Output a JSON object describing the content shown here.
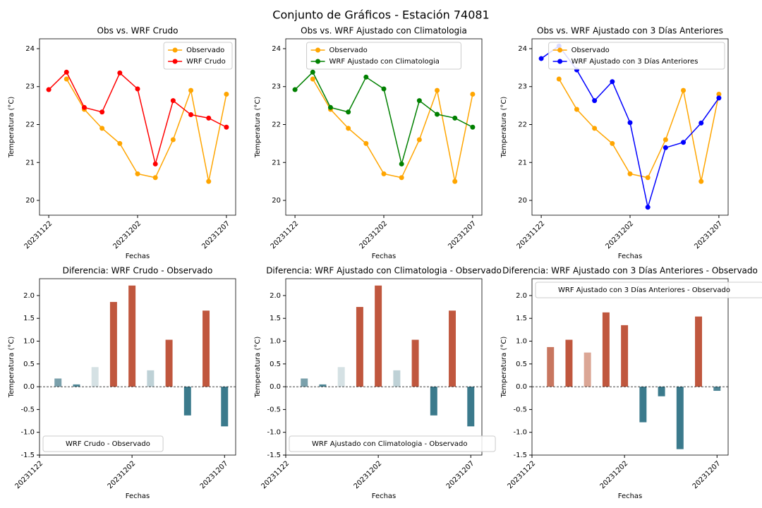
{
  "title": "Conjunto de Gráficos - Estación 74081",
  "chart_data": [
    {
      "type": "line",
      "title": "Obs vs. WRF Crudo",
      "xlabel": "Fechas",
      "ylabel": "Temperatura (°C)",
      "categories": [
        "20231122",
        null,
        null,
        null,
        null,
        "20231202",
        null,
        null,
        null,
        null,
        "20231207"
      ],
      "xlim": [
        -0.52,
        10.52
      ],
      "ylim": [
        19.61,
        24.26
      ],
      "yticks": [
        20,
        21,
        22,
        23,
        24
      ],
      "legend": "upper right",
      "series": [
        {
          "name": "Observado",
          "color": "#ffa500",
          "values": [
            null,
            23.2,
            22.4,
            21.9,
            21.5,
            20.7,
            20.6,
            21.6,
            22.9,
            20.5,
            22.8
          ]
        },
        {
          "name": "WRF Crudo",
          "color": "#ff0000",
          "values": [
            22.92,
            23.38,
            22.45,
            22.33,
            23.36,
            22.94,
            20.96,
            22.63,
            22.26,
            22.17,
            21.93
          ]
        }
      ]
    },
    {
      "type": "line",
      "title": "Obs vs. WRF Ajustado con Climatologia",
      "xlabel": "Fechas",
      "ylabel": "Temperatura (°C)",
      "categories": [
        "20231122",
        null,
        null,
        null,
        null,
        "20231202",
        null,
        null,
        null,
        null,
        "20231207"
      ],
      "xlim": [
        -0.52,
        10.52
      ],
      "ylim": [
        19.61,
        24.26
      ],
      "yticks": [
        20,
        21,
        22,
        23,
        24
      ],
      "legend": "upper center",
      "series": [
        {
          "name": "Observado",
          "color": "#ffa500",
          "values": [
            null,
            23.2,
            22.4,
            21.9,
            21.5,
            20.7,
            20.6,
            21.6,
            22.9,
            20.5,
            22.8
          ]
        },
        {
          "name": "WRF Ajustado con Climatologia",
          "color": "#008000",
          "values": [
            22.92,
            23.38,
            22.45,
            22.33,
            23.25,
            22.94,
            20.96,
            22.63,
            22.27,
            22.17,
            21.93
          ]
        }
      ]
    },
    {
      "type": "line",
      "title": "Obs vs. WRF Ajustado con 3 Días Anteriores",
      "xlabel": "Fechas",
      "ylabel": "Temperatura (°C)",
      "categories": [
        "20231122",
        null,
        null,
        null,
        null,
        "20231202",
        null,
        null,
        null,
        null,
        "20231207"
      ],
      "xlim": [
        -0.52,
        10.52
      ],
      "ylim": [
        19.61,
        24.26
      ],
      "yticks": [
        20,
        21,
        22,
        23,
        24
      ],
      "legend": "upper right",
      "series": [
        {
          "name": "Observado",
          "color": "#ffa500",
          "values": [
            null,
            23.2,
            22.4,
            21.9,
            21.5,
            20.7,
            20.6,
            21.6,
            22.9,
            20.5,
            22.8
          ]
        },
        {
          "name": "WRF Ajustado con 3 Días Anteriores",
          "color": "#0000ff",
          "values": [
            23.74,
            24.07,
            23.44,
            22.63,
            23.13,
            22.05,
            19.82,
            21.39,
            21.53,
            22.04,
            22.7
          ]
        }
      ]
    },
    {
      "type": "bar",
      "title": "Diferencia: WRF Crudo - Observado",
      "xlabel": "Fechas",
      "ylabel": "Temperatura (°C)",
      "categories": [
        "20231122",
        null,
        null,
        null,
        null,
        "20231202",
        null,
        null,
        null,
        null,
        "20231207"
      ],
      "xlim": [
        0,
        10.6
      ],
      "ylim": [
        -1.5,
        2.37
      ],
      "yticks": [
        -1.5,
        {
          "value": -1,
          "label": "-1.0"
        },
        -0.5,
        {
          "value": 0,
          "label": "0.0"
        },
        0.5,
        {
          "value": 1,
          "label": "1.0"
        },
        1.5,
        {
          "value": 2,
          "label": "2.0"
        }
      ],
      "hline": 0,
      "legend": "lower left",
      "series": [
        {
          "name": "WRF Crudo - Observado",
          "colors": [
            null,
            "#7aa0ab",
            "#4f8796",
            "#d5e1e4",
            "#c0573e",
            "#c0573e",
            "#bed1d6",
            "#c0573e",
            "#3b7a8c",
            "#c0573e",
            "#3b7a8c"
          ],
          "values": [
            null,
            0.18,
            0.05,
            0.43,
            1.86,
            2.22,
            0.36,
            1.03,
            -0.63,
            1.67,
            -0.87
          ]
        }
      ]
    },
    {
      "type": "bar",
      "title": "Diferencia: WRF Ajustado con Climatologia - Observado",
      "xlabel": "Fechas",
      "ylabel": "Temperatura (°C)",
      "categories": [
        "20231122",
        null,
        null,
        null,
        null,
        "20231202",
        null,
        null,
        null,
        null,
        "20231207"
      ],
      "xlim": [
        0,
        10.6
      ],
      "ylim": [
        -1.5,
        2.37
      ],
      "yticks": [
        -1.5,
        {
          "value": -1,
          "label": "-1.0"
        },
        -0.5,
        {
          "value": 0,
          "label": "0.0"
        },
        0.5,
        {
          "value": 1,
          "label": "1.0"
        },
        1.5,
        {
          "value": 2,
          "label": "2.0"
        }
      ],
      "hline": 0,
      "legend": "lower left",
      "series": [
        {
          "name": "WRF Ajustado con Climatologia - Observado",
          "colors": [
            null,
            "#7aa0ab",
            "#4f8796",
            "#d5e1e4",
            "#c0573e",
            "#c0573e",
            "#bed1d6",
            "#c0573e",
            "#3b7a8c",
            "#c0573e",
            "#3b7a8c"
          ],
          "values": [
            null,
            0.18,
            0.05,
            0.43,
            1.75,
            2.22,
            0.36,
            1.03,
            -0.63,
            1.67,
            -0.87
          ]
        }
      ]
    },
    {
      "type": "bar",
      "title": "Diferencia: WRF Ajustado con 3 Días Anteriores - Observado",
      "xlabel": "Fechas",
      "ylabel": "Temperatura (°C)",
      "categories": [
        "20231122",
        null,
        null,
        null,
        null,
        "20231202",
        null,
        null,
        null,
        null,
        "20231207"
      ],
      "xlim": [
        0,
        10.6
      ],
      "ylim": [
        -1.5,
        2.37
      ],
      "yticks": [
        -1.5,
        {
          "value": -1,
          "label": "-1.0"
        },
        -0.5,
        {
          "value": 0,
          "label": "0.0"
        },
        0.5,
        {
          "value": 1,
          "label": "1.0"
        },
        1.5,
        {
          "value": 2,
          "label": "2.0"
        }
      ],
      "hline": 0,
      "legend": "upper left",
      "series": [
        {
          "name": "WRF Ajustado con 3 Días Anteriores - Observado",
          "colors": [
            null,
            "#c8765f",
            "#c0573e",
            "#dba695",
            "#c0573e",
            "#c0573e",
            "#3b7a8c",
            "#3b7a8c",
            "#3b7a8c",
            "#c0573e",
            "#4d8595"
          ],
          "values": [
            null,
            0.87,
            1.03,
            0.75,
            1.63,
            1.35,
            -0.78,
            -0.21,
            -1.37,
            1.54,
            -0.09
          ]
        }
      ]
    }
  ]
}
